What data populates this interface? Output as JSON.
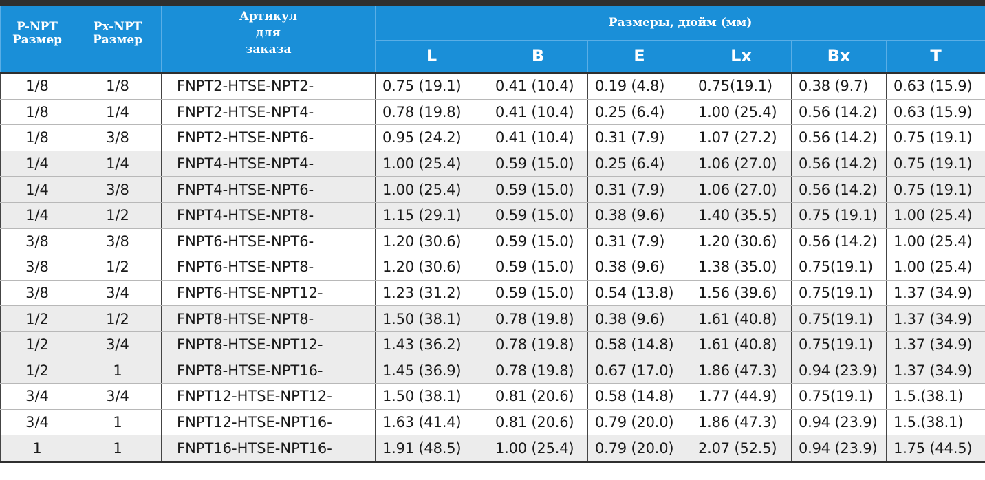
{
  "table": {
    "headers": {
      "p_size": [
        "P-NPT",
        "Размер"
      ],
      "px_size": [
        "Px-NPT",
        "Размер"
      ],
      "article": [
        "Артикул",
        "для",
        "заказа"
      ],
      "dimensions": "Размеры, дюйм (мм)",
      "columns": [
        "L",
        "B",
        "E",
        "Lx",
        "Bx",
        "T"
      ]
    },
    "rows": [
      {
        "p": "1/8",
        "px": "1/8",
        "article": "FNPT2-HTSE-NPT2-",
        "L": "0.75 (19.1)",
        "B": "0.41 (10.4)",
        "E": "0.19 (4.8)",
        "Lx": "0.75(19.1)",
        "Bx": "0.38 (9.7)",
        "T": "0.63 (15.9)",
        "shaded": false
      },
      {
        "p": "1/8",
        "px": "1/4",
        "article": "FNPT2-HTSE-NPT4-",
        "L": "0.78 (19.8)",
        "B": "0.41 (10.4)",
        "E": "0.25 (6.4)",
        "Lx": "1.00 (25.4)",
        "Bx": "0.56 (14.2)",
        "T": "0.63 (15.9)",
        "shaded": false
      },
      {
        "p": "1/8",
        "px": "3/8",
        "article": "FNPT2-HTSE-NPT6-",
        "L": "0.95 (24.2)",
        "B": "0.41 (10.4)",
        "E": "0.31 (7.9)",
        "Lx": "1.07 (27.2)",
        "Bx": "0.56 (14.2)",
        "T": "0.75 (19.1)",
        "shaded": false
      },
      {
        "p": "1/4",
        "px": "1/4",
        "article": "FNPT4-HTSE-NPT4-",
        "L": "1.00 (25.4)",
        "B": "0.59 (15.0)",
        "E": "0.25 (6.4)",
        "Lx": "1.06 (27.0)",
        "Bx": "0.56 (14.2)",
        "T": "0.75 (19.1)",
        "shaded": true
      },
      {
        "p": "1/4",
        "px": "3/8",
        "article": "FNPT4-HTSE-NPT6-",
        "L": "1.00 (25.4)",
        "B": "0.59 (15.0)",
        "E": "0.31 (7.9)",
        "Lx": "1.06 (27.0)",
        "Bx": "0.56 (14.2)",
        "T": "0.75 (19.1)",
        "shaded": true
      },
      {
        "p": "1/4",
        "px": "1/2",
        "article": "FNPT4-HTSE-NPT8-",
        "L": "1.15 (29.1)",
        "B": "0.59 (15.0)",
        "E": "0.38 (9.6)",
        "Lx": "1.40 (35.5)",
        "Bx": "0.75 (19.1)",
        "T": "1.00 (25.4)",
        "shaded": true
      },
      {
        "p": "3/8",
        "px": "3/8",
        "article": "FNPT6-HTSE-NPT6-",
        "L": "1.20 (30.6)",
        "B": "0.59 (15.0)",
        "E": "0.31 (7.9)",
        "Lx": "1.20 (30.6)",
        "Bx": "0.56 (14.2)",
        "T": "1.00 (25.4)",
        "shaded": false
      },
      {
        "p": "3/8",
        "px": "1/2",
        "article": "FNPT6-HTSE-NPT8-",
        "L": "1.20 (30.6)",
        "B": "0.59 (15.0)",
        "E": "0.38 (9.6)",
        "Lx": "1.38 (35.0)",
        "Bx": "0.75(19.1)",
        "T": "1.00 (25.4)",
        "shaded": false
      },
      {
        "p": "3/8",
        "px": "3/4",
        "article": "FNPT6-HTSE-NPT12-",
        "L": "1.23 (31.2)",
        "B": "0.59 (15.0)",
        "E": "0.54 (13.8)",
        "Lx": "1.56 (39.6)",
        "Bx": "0.75(19.1)",
        "T": "1.37 (34.9)",
        "shaded": false
      },
      {
        "p": "1/2",
        "px": "1/2",
        "article": "FNPT8-HTSE-NPT8-",
        "L": "1.50 (38.1)",
        "B": "0.78 (19.8)",
        "E": "0.38 (9.6)",
        "Lx": "1.61 (40.8)",
        "Bx": "0.75(19.1)",
        "T": "1.37 (34.9)",
        "shaded": true
      },
      {
        "p": "1/2",
        "px": "3/4",
        "article": "FNPT8-HTSE-NPT12-",
        "L": "1.43 (36.2)",
        "B": "0.78 (19.8)",
        "E": "0.58 (14.8)",
        "Lx": "1.61 (40.8)",
        "Bx": "0.75(19.1)",
        "T": "1.37 (34.9)",
        "shaded": true
      },
      {
        "p": "1/2",
        "px": "1",
        "article": "FNPT8-HTSE-NPT16-",
        "L": "1.45 (36.9)",
        "B": "0.78 (19.8)",
        "E": "0.67 (17.0)",
        "Lx": "1.86 (47.3)",
        "Bx": "0.94 (23.9)",
        "T": "1.37 (34.9)",
        "shaded": true
      },
      {
        "p": "3/4",
        "px": "3/4",
        "article": "FNPT12-HTSE-NPT12-",
        "L": "1.50 (38.1)",
        "B": "0.81 (20.6)",
        "E": "0.58 (14.8)",
        "Lx": "1.77 (44.9)",
        "Bx": "0.75(19.1)",
        "T": "1.5.(38.1)",
        "shaded": false
      },
      {
        "p": "3/4",
        "px": "1",
        "article": "FNPT12-HTSE-NPT16-",
        "L": "1.63 (41.4)",
        "B": "0.81 (20.6)",
        "E": "0.79 (20.0)",
        "Lx": "1.86 (47.3)",
        "Bx": "0.94 (23.9)",
        "T": "1.5.(38.1)",
        "shaded": false
      },
      {
        "p": "1",
        "px": "1",
        "article": "FNPT16-HTSE-NPT16-",
        "L": "1.91 (48.5)",
        "B": "1.00 (25.4)",
        "E": "0.79 (20.0)",
        "Lx": "2.07 (52.5)",
        "Bx": "0.94 (23.9)",
        "T": "1.75 (44.5)",
        "shaded": true
      }
    ]
  },
  "colors": {
    "header_blue": "#1a8fd8",
    "row_shade": "#ececec",
    "rule_dark": "#2f2f2f"
  }
}
